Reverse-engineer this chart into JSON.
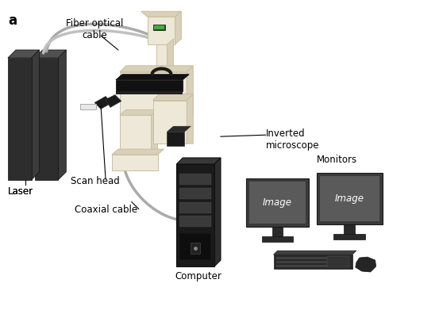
{
  "title_label": "a",
  "bg_color": "#ffffff",
  "labels": {
    "fiber_optical_cable": "Fiber optical\ncable",
    "laser": "Laser",
    "scan_head": "Scan head",
    "coaxial_cable": "Coaxial cable",
    "inverted_microscope": "Inverted\nmicroscope",
    "monitors": "Monitors",
    "computer": "Computer",
    "image": "Image"
  },
  "colors": {
    "dark_gray": "#2d2d2d",
    "medium_gray": "#505050",
    "light_gray": "#aaaaaa",
    "beige": "#ede8d8",
    "beige_shade": "#d8d0b8",
    "beige_dark": "#c8c0a0",
    "monitor_screen": "#5a5a5a",
    "monitor_frame": "#3a3a3a",
    "monitor_dark": "#2a2a2a",
    "cable_color": "#aaaaaa",
    "black": "#111111",
    "green_display": "#44aa44",
    "keyboard_color": "#2a2a2a",
    "text_white": "#ffffff",
    "computer_body": "#1a1a1a",
    "computer_stripe": "#3a3a3a"
  }
}
